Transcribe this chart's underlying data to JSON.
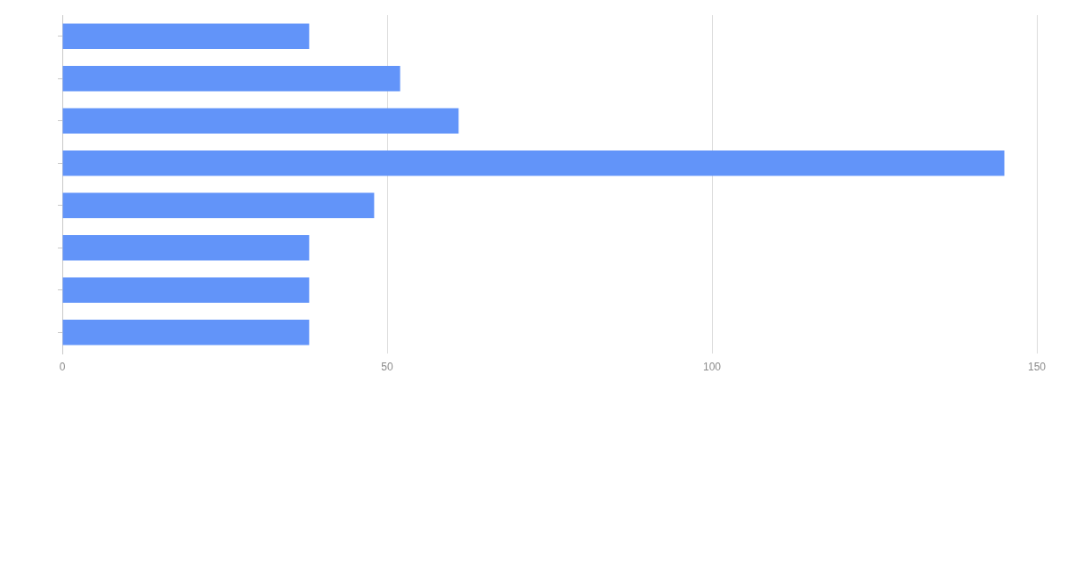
{
  "chart_data": {
    "type": "bar",
    "orientation": "horizontal",
    "categories": [
      null,
      null,
      null,
      null,
      null,
      null,
      null,
      null
    ],
    "values": [
      38,
      52,
      61,
      145,
      48,
      38,
      38,
      38
    ],
    "color": "#6294f9",
    "xlim": [
      0,
      150
    ],
    "xticks": [
      0,
      50,
      100,
      150
    ],
    "grid": "x"
  }
}
